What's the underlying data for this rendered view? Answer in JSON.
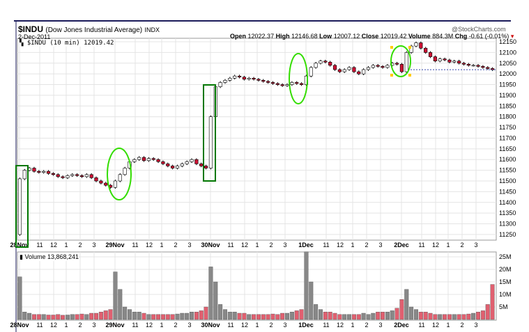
{
  "header": {
    "symbol": "$INDU",
    "name": "(Dow Jones Industrial Average)",
    "exchange": "INDX",
    "date": "2-Dec-2011",
    "watermark": "@StockCharts.com",
    "legend": "$INDU (10 min) 12019.42",
    "stats": [
      {
        "label": "Open",
        "value": "12022.37"
      },
      {
        "label": "High",
        "value": "12146.68"
      },
      {
        "label": "Low",
        "value": "12007.12"
      },
      {
        "label": "Close",
        "value": "12019.42"
      },
      {
        "label": "Volume",
        "value": "884.3M"
      },
      {
        "label": "Chg",
        "value": "-0.61 (-0.01%)"
      }
    ],
    "down_arrow_color": "#cc0000"
  },
  "chart_data": [
    {
      "type": "candlestick",
      "interval": "10 min",
      "ylim": [
        11200,
        12170
      ],
      "y_ticks": [
        11250,
        11300,
        11350,
        11400,
        11450,
        11500,
        11550,
        11600,
        11650,
        11700,
        11750,
        11800,
        11850,
        11900,
        11950,
        12000,
        12050,
        12100,
        12150
      ],
      "x_tick_labels": [
        "28Nov",
        "11",
        "12",
        "1",
        "2",
        "3",
        "29Nov",
        "11",
        "12",
        "1",
        "2",
        "3",
        "30Nov",
        "11",
        "12",
        "1",
        "2",
        "3",
        "1Dec",
        "11",
        "12",
        "1",
        "2",
        "3",
        "2Dec",
        "11",
        "12",
        "1",
        "2",
        "3"
      ],
      "days": [
        "28Nov",
        "29Nov",
        "30Nov",
        "1Dec",
        "2Dec"
      ],
      "first_open": 11250,
      "closes": [
        [
          11510,
          11550,
          11560,
          11545,
          11540,
          11545,
          11535,
          11530,
          11520,
          11515,
          11525,
          11530,
          11525,
          11520,
          11530,
          11515,
          11500,
          11490,
          11480,
          11470
        ],
        [
          11500,
          11530,
          11560,
          11590,
          11600,
          11610,
          11595,
          11605,
          11600,
          11590,
          11580,
          11570,
          11560,
          11570,
          11580,
          11590,
          11600,
          11580,
          11570,
          11560
        ],
        [
          11800,
          11940,
          11960,
          11970,
          11980,
          11990,
          11985,
          11975,
          11980,
          11975,
          11970,
          11965,
          11960,
          11955,
          11950,
          11945,
          11950,
          11960,
          11955,
          11950
        ],
        [
          11990,
          12030,
          12050,
          12060,
          12055,
          12040,
          12020,
          12010,
          12020,
          12030,
          12010,
          12000,
          12020,
          12030,
          12040,
          12035,
          12030,
          12040,
          12050,
          12045
        ],
        [
          12010,
          12100,
          12130,
          12145,
          12120,
          12100,
          12080,
          12060,
          12070,
          12065,
          12055,
          12060,
          12050,
          12045,
          12040,
          12040,
          12035,
          12030,
          12025,
          12019.42
        ]
      ],
      "last_close_line": 12019.42,
      "up_color": "#ffffff",
      "down_color": "#cc1133",
      "grid": true
    },
    {
      "type": "bar",
      "title": "Volume 13,868,241",
      "ylim": [
        0,
        27
      ],
      "y_tick_labels": [
        "5M",
        "10M",
        "15M",
        "20M",
        "25M"
      ],
      "y_ticks": [
        5,
        10,
        15,
        20,
        25
      ],
      "volumes_millions": [
        [
          17,
          3,
          2.5,
          2,
          2,
          2,
          1.8,
          1.8,
          2,
          1.7,
          1.8,
          2,
          2,
          2.2,
          2,
          2.5,
          2.5,
          3,
          3.5,
          4
        ],
        [
          19,
          12,
          5,
          4,
          3,
          3,
          2.5,
          2,
          2,
          2,
          2,
          2,
          2,
          2.2,
          2.5,
          2.5,
          3,
          3,
          3.5,
          5
        ],
        [
          21,
          15,
          6,
          4,
          3,
          3,
          2.5,
          2.5,
          2,
          2,
          2,
          2,
          2,
          2.2,
          2,
          2.5,
          2.5,
          3,
          3.5,
          4
        ],
        [
          27,
          15,
          6,
          4,
          3,
          3,
          2.5,
          2,
          2,
          2,
          2,
          2,
          2.5,
          2,
          2.5,
          3,
          3,
          3,
          3.5,
          4.5
        ],
        [
          8,
          12,
          5,
          4,
          3,
          3,
          2.5,
          2,
          2,
          2,
          2,
          2,
          2,
          2,
          2.2,
          2.5,
          3,
          3.5,
          6,
          14
        ]
      ],
      "up_color": "#888888",
      "down_color": "#e06070"
    }
  ],
  "annotations": {
    "box_color": "#007700",
    "ellipse_color": "#33dd00",
    "marker_color": "#ffcc00"
  }
}
